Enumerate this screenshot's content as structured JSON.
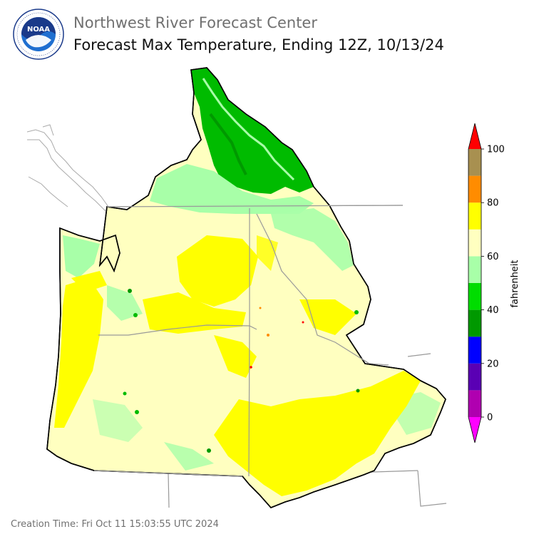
{
  "header": {
    "logo_text": "NOAA",
    "organization": "Northwest River Forecast Center",
    "title": "Forecast Max Temperature, Ending 12Z, 10/13/24"
  },
  "legend": {
    "units": "fahrenheit",
    "ticks": [
      "0",
      "20",
      "40",
      "60",
      "80",
      "100"
    ],
    "bins": [
      {
        "range": "below 0",
        "color": "#ff00ff"
      },
      {
        "range": "0-10",
        "color": "#b000b0"
      },
      {
        "range": "10-20",
        "color": "#5a00b4"
      },
      {
        "range": "20-30",
        "color": "#0000ff"
      },
      {
        "range": "30-40",
        "color": "#009900"
      },
      {
        "range": "40-50",
        "color": "#00dd00"
      },
      {
        "range": "50-60",
        "color": "#a8ffa8"
      },
      {
        "range": "60-70",
        "color": "#ffffc0"
      },
      {
        "range": "70-80",
        "color": "#ffff00"
      },
      {
        "range": "80-90",
        "color": "#ff8c00"
      },
      {
        "range": "90-100",
        "color": "#a89050"
      },
      {
        "range": "above 100",
        "color": "#ff0000"
      }
    ]
  },
  "footer": {
    "creation_time": "Creation Time: Fri Oct 11 15:03:55 UTC 2024"
  }
}
